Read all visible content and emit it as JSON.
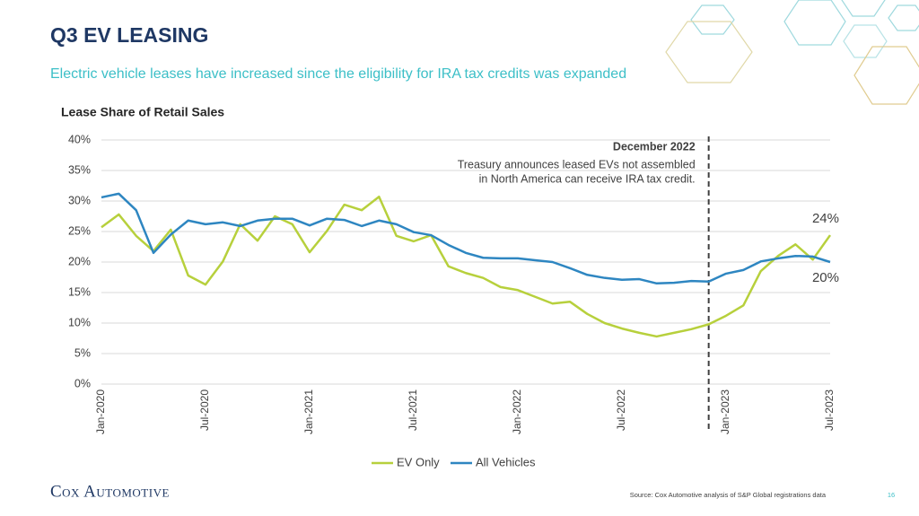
{
  "header": {
    "title": "Q3 EV LEASING",
    "subtitle": "Electric vehicle leases have increased since the eligibility for IRA tax credits was expanded"
  },
  "chart_data": {
    "type": "line",
    "title": "Lease Share of Retail Sales",
    "categories": [
      "Jan-2020",
      null,
      null,
      null,
      null,
      null,
      "Jul-2020",
      null,
      null,
      null,
      null,
      null,
      "Jan-2021",
      null,
      null,
      null,
      null,
      null,
      "Jul-2021",
      null,
      null,
      null,
      null,
      null,
      "Jan-2022",
      null,
      null,
      null,
      null,
      null,
      "Jul-2022",
      null,
      null,
      null,
      null,
      null,
      "Jan-2023",
      null,
      null,
      null,
      null,
      null,
      "Jul-2023"
    ],
    "series": [
      {
        "name": "EV Only",
        "color": "#b7d03c",
        "values": [
          25.7,
          27.8,
          24.3,
          21.8,
          25.3,
          17.8,
          16.3,
          20.1,
          26.2,
          23.5,
          27.5,
          26.2,
          21.6,
          25.1,
          29.4,
          28.5,
          30.7,
          24.3,
          23.4,
          24.4,
          19.3,
          18.2,
          17.4,
          15.9,
          15.4,
          14.3,
          13.2,
          13.5,
          11.5,
          10.0,
          9.1,
          8.4,
          7.8,
          8.4,
          9.0,
          9.8,
          11.2,
          12.9,
          18.5,
          21.0,
          22.9,
          20.4,
          24.4
        ],
        "value_labels": [
          null,
          null,
          null,
          null,
          null,
          null,
          null,
          null,
          null,
          null,
          null,
          null,
          null,
          null,
          null,
          null,
          null,
          null,
          null,
          null,
          null,
          null,
          null,
          null,
          null,
          null,
          null,
          null,
          null,
          null,
          null,
          null,
          null,
          null,
          null,
          null,
          null,
          null,
          null,
          null,
          null,
          null,
          "24%"
        ]
      },
      {
        "name": "All Vehicles",
        "color": "#2e86c1",
        "values": [
          30.6,
          31.2,
          28.5,
          21.5,
          24.5,
          26.8,
          26.2,
          26.5,
          25.9,
          26.8,
          27.1,
          27.1,
          26.0,
          27.1,
          26.9,
          25.9,
          26.8,
          26.2,
          24.9,
          24.4,
          22.8,
          21.5,
          20.7,
          20.6,
          20.6,
          20.3,
          20.0,
          19.0,
          17.9,
          17.4,
          17.1,
          17.2,
          16.5,
          16.6,
          16.9,
          16.8,
          18.1,
          18.7,
          20.1,
          20.6,
          21.0,
          20.9,
          20.0
        ],
        "value_labels": [
          null,
          null,
          null,
          null,
          null,
          null,
          null,
          null,
          null,
          null,
          null,
          null,
          null,
          null,
          null,
          null,
          null,
          null,
          null,
          null,
          null,
          null,
          null,
          null,
          null,
          null,
          null,
          null,
          null,
          null,
          null,
          null,
          null,
          null,
          null,
          null,
          null,
          null,
          null,
          null,
          null,
          null,
          "20%"
        ]
      }
    ],
    "ylim": [
      0,
      40
    ],
    "yticks": [
      {
        "value": 0,
        "label": "0%"
      },
      {
        "value": 5,
        "label": "5%"
      },
      {
        "value": 10,
        "label": "10%"
      },
      {
        "value": 15,
        "label": "15%"
      },
      {
        "value": 20,
        "label": "20%"
      },
      {
        "value": 25,
        "label": "25%"
      },
      {
        "value": 30,
        "label": "30%"
      },
      {
        "value": 35,
        "label": "35%"
      },
      {
        "value": 40,
        "label": "40%"
      }
    ],
    "grid": true,
    "legend": "bottom",
    "annotation": {
      "x": 35,
      "title": "December 2022",
      "text": [
        "Treasury announces leased EVs not assembled",
        "in North America can receive IRA tax credit."
      ]
    }
  },
  "footer": {
    "logo": "Cox Automotive",
    "source": "Source: Cox Automotive analysis of S&P Global registrations data",
    "page": "16"
  }
}
